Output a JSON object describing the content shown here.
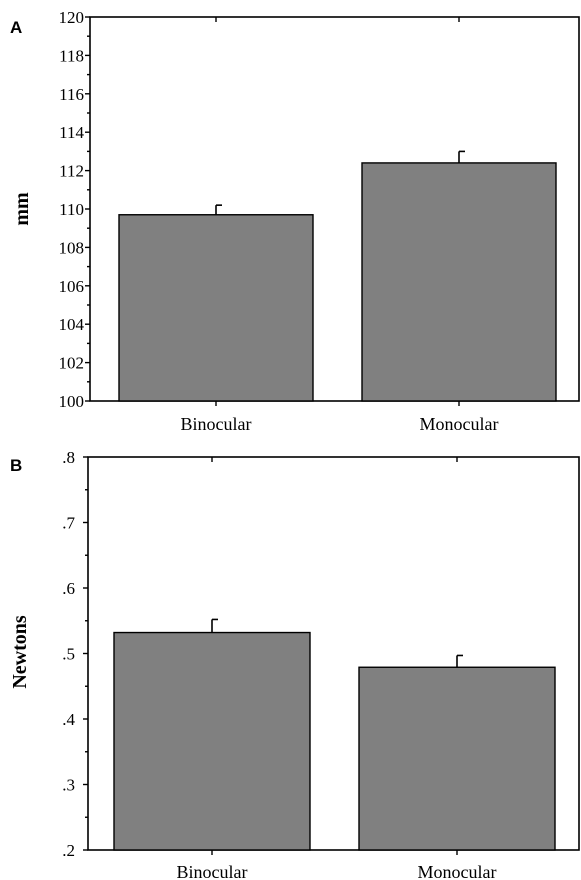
{
  "chart_data": [
    {
      "panel": "A",
      "type": "bar",
      "categories": [
        "Binocular",
        "Monocular"
      ],
      "values": [
        109.7,
        112.4
      ],
      "errors": [
        0.5,
        0.6
      ],
      "ylabel": "mm",
      "ylim": [
        100,
        120
      ],
      "yticks": [
        100,
        102,
        104,
        106,
        108,
        110,
        112,
        114,
        116,
        118,
        120
      ],
      "ytick_labels": [
        "100",
        "102",
        "104",
        "106",
        "108",
        "110",
        "112",
        "114",
        "116",
        "118",
        "120"
      ],
      "bar_color": "#808080"
    },
    {
      "panel": "B",
      "type": "bar",
      "categories": [
        "Binocular",
        "Monocular"
      ],
      "values": [
        0.532,
        0.479
      ],
      "errors": [
        0.02,
        0.018
      ],
      "ylabel": "Newtons",
      "ylim": [
        0.2,
        0.8
      ],
      "yticks": [
        0.2,
        0.3,
        0.4,
        0.5,
        0.6,
        0.7,
        0.8
      ],
      "ytick_labels": [
        ".2",
        ".3",
        ".4",
        ".5",
        ".6",
        ".7",
        ".8"
      ],
      "bar_color": "#808080"
    }
  ]
}
